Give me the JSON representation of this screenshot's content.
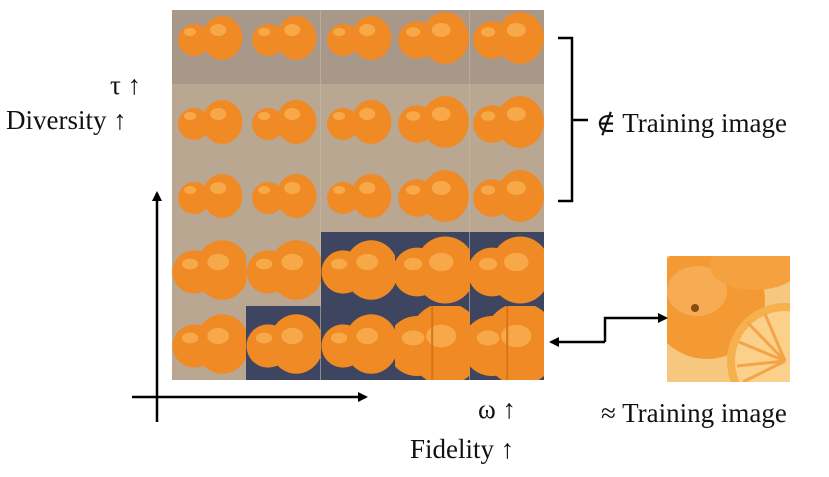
{
  "labels": {
    "tau": "τ ↑",
    "diversity": "Diversity ↑",
    "omega": "ω ↑",
    "fidelity": "Fidelity ↑",
    "not_training": "∉ Training image",
    "approx_training": "≈ Training image"
  },
  "grid": {
    "rows": 5,
    "cols": 5
  },
  "colors": {
    "orange": "#f08a24",
    "orange_light": "#f7a94a",
    "background_sand": "#b9a792",
    "background_dark": "#3d4560",
    "arrow": "#000000"
  }
}
